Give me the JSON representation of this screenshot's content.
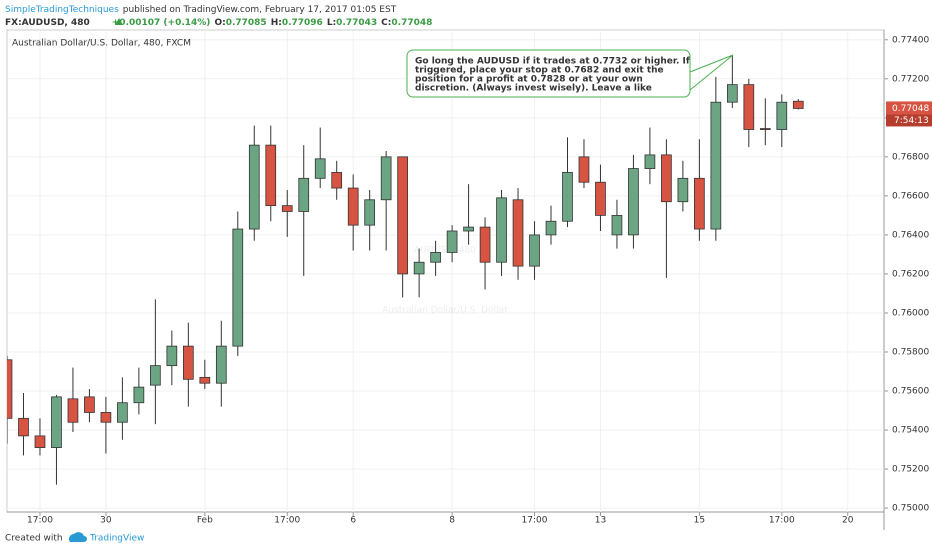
{
  "header": {
    "author": "SimpleTradingTechniques",
    "published": "published on TradingView.com, February 17, 2017 01:05 EST",
    "symbol": "FX:AUDUSD, 480",
    "change": "+0.00107 (+0.14%)",
    "ohlc": [
      {
        "key": "O:",
        "value": "0.77085"
      },
      {
        "key": "H:",
        "value": "0.77096"
      },
      {
        "key": "L:",
        "value": "0.77043"
      },
      {
        "key": "C:",
        "value": "0.77048"
      }
    ]
  },
  "footer": {
    "created": "Created with",
    "brand": "TradingView"
  },
  "chart_data": {
    "type": "candlestick",
    "legend": "Australian Dollar/U.S. Dollar, 480, FXCM",
    "watermark": [
      "AUDUSD, 480",
      "Australian Dollar/U.S. Dollar"
    ],
    "annotation": [
      "Go long the AUDUSD if it trades at 0.7732 or higher. If",
      "triggered, place your stop at 0.7682 and exit the",
      "position for a profit at 0.7828 or at your own",
      "discretion. (Always invest wisely). Leave a like"
    ],
    "up_color": "#6ba583",
    "down_color": "#d75442",
    "grid": true,
    "open": [
      0.7576,
      0.7546,
      0.7537,
      0.7531,
      0.7556,
      0.7557,
      0.7549,
      0.7544,
      0.7554,
      0.7563,
      0.7573,
      0.7583,
      0.7567,
      0.7564,
      0.7583,
      0.7643,
      0.7686,
      0.7655,
      0.7652,
      0.7669,
      0.7672,
      0.7664,
      0.7645,
      0.7658,
      0.768,
      0.762,
      0.7626,
      0.7631,
      0.7642,
      0.7644,
      0.7626,
      0.7658,
      0.7624,
      0.764,
      0.7647,
      0.768,
      0.7667,
      0.764,
      0.764,
      0.7674,
      0.7681,
      0.7657,
      0.7669,
      0.7643,
      0.7708,
      0.7717,
      0.76945,
      0.7694,
      0.77085
    ],
    "high": [
      0.7578,
      0.7559,
      0.7546,
      0.7558,
      0.7572,
      0.7561,
      0.7557,
      0.7567,
      0.7572,
      0.7607,
      0.7591,
      0.7595,
      0.7576,
      0.7596,
      0.7652,
      0.7696,
      0.7696,
      0.7663,
      0.7686,
      0.7695,
      0.7678,
      0.7671,
      0.7663,
      0.7683,
      0.768,
      0.7633,
      0.7637,
      0.7645,
      0.7666,
      0.7649,
      0.7663,
      0.7664,
      0.7647,
      0.7655,
      0.769,
      0.7689,
      0.7676,
      0.7658,
      0.7681,
      0.7695,
      0.7689,
      0.7678,
      0.7689,
      0.7721,
      0.7732,
      0.772,
      0.771,
      0.7712,
      0.77096
    ],
    "low": [
      0.7533,
      0.7527,
      0.7527,
      0.7512,
      0.7539,
      0.7544,
      0.7528,
      0.7535,
      0.7548,
      0.7543,
      0.7563,
      0.7552,
      0.7561,
      0.7552,
      0.7578,
      0.7637,
      0.7647,
      0.7639,
      0.7619,
      0.7664,
      0.7658,
      0.7632,
      0.7632,
      0.7632,
      0.7608,
      0.7608,
      0.7619,
      0.7626,
      0.7635,
      0.7612,
      0.7619,
      0.7617,
      0.7617,
      0.7635,
      0.7644,
      0.7664,
      0.7642,
      0.7633,
      0.7633,
      0.7666,
      0.7618,
      0.7652,
      0.7637,
      0.7637,
      0.7705,
      0.7685,
      0.7686,
      0.7685,
      0.77043
    ],
    "close": [
      0.7546,
      0.7537,
      0.7531,
      0.7557,
      0.7544,
      0.7549,
      0.7544,
      0.7554,
      0.7562,
      0.7573,
      0.7583,
      0.7566,
      0.7564,
      0.7583,
      0.7643,
      0.7686,
      0.7655,
      0.7652,
      0.7669,
      0.7679,
      0.7664,
      0.7645,
      0.7658,
      0.768,
      0.762,
      0.7626,
      0.7631,
      0.7642,
      0.7644,
      0.7626,
      0.7659,
      0.7624,
      0.764,
      0.7647,
      0.7672,
      0.7667,
      0.765,
      0.765,
      0.7674,
      0.7681,
      0.7657,
      0.7669,
      0.7643,
      0.7708,
      0.7717,
      0.7694,
      0.7694,
      0.7708,
      0.77048
    ],
    "xlim": [
      0,
      53.2
    ],
    "xticks": [
      {
        "value": 2,
        "label": "17:00"
      },
      {
        "value": 6,
        "label": "30"
      },
      {
        "value": 12,
        "label": "Feb"
      },
      {
        "value": 17,
        "label": "17:00"
      },
      {
        "value": 21,
        "label": "6"
      },
      {
        "value": 27,
        "label": "8"
      },
      {
        "value": 32,
        "label": "17:00"
      },
      {
        "value": 36,
        "label": "13"
      },
      {
        "value": 42,
        "label": "15"
      },
      {
        "value": 47,
        "label": "17:00"
      },
      {
        "value": 51,
        "label": "20"
      }
    ],
    "ylim": [
      0.7498,
      0.7745
    ],
    "yticks": [
      {
        "value": 0.75,
        "label": "0.75000"
      },
      {
        "value": 0.752,
        "label": "0.75200"
      },
      {
        "value": 0.754,
        "label": "0.75400"
      },
      {
        "value": 0.756,
        "label": "0.75600"
      },
      {
        "value": 0.758,
        "label": "0.75800"
      },
      {
        "value": 0.76,
        "label": "0.76000"
      },
      {
        "value": 0.762,
        "label": "0.76200"
      },
      {
        "value": 0.764,
        "label": "0.76400"
      },
      {
        "value": 0.766,
        "label": "0.76600"
      },
      {
        "value": 0.768,
        "label": "0.76800"
      },
      {
        "value": 0.77,
        "label": "0.77000"
      },
      {
        "value": 0.772,
        "label": "0.77200"
      },
      {
        "value": 0.774,
        "label": "0.77400"
      }
    ],
    "last_price": {
      "value": 0.77048,
      "label": "0.77048"
    },
    "countdown": "7:54:13"
  }
}
